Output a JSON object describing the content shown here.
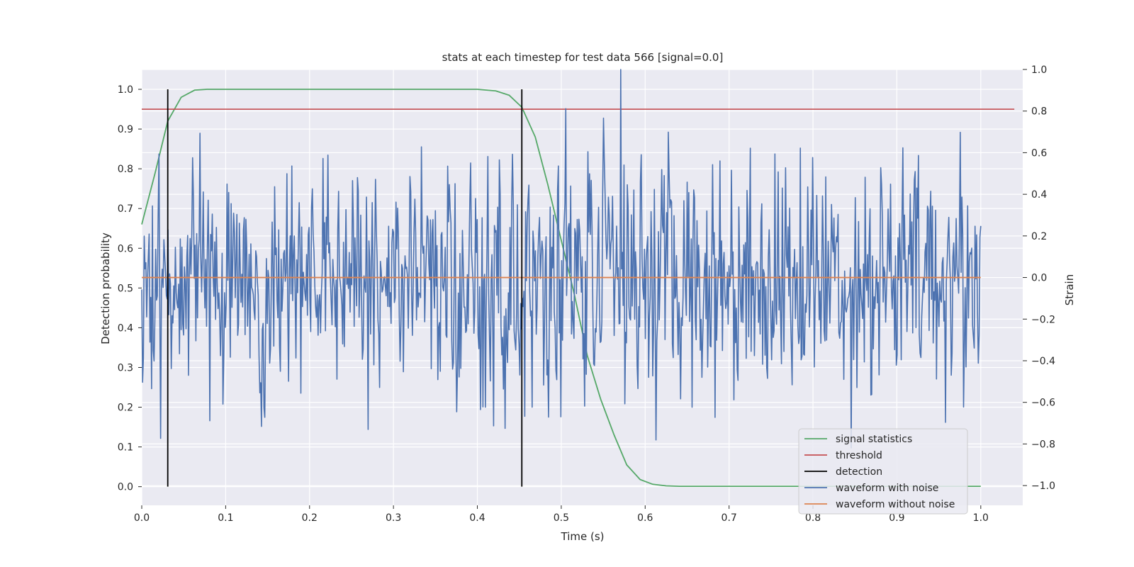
{
  "chart_data": {
    "type": "line",
    "title": "stats at each timestep for test data 566 [signal=0.0]",
    "xlabel": "Time (s)",
    "ylabel": "Detection probability",
    "y2label": "Strain",
    "xlim": [
      0.0,
      1.05
    ],
    "ylim": [
      -0.047,
      1.05
    ],
    "y2lim": [
      -1.095,
      1.0
    ],
    "xticks": [
      "0.0",
      "0.1",
      "0.2",
      "0.3",
      "0.4",
      "0.5",
      "0.6",
      "0.7",
      "0.8",
      "0.9",
      "1.0"
    ],
    "yticks": [
      "0.0",
      "0.1",
      "0.2",
      "0.3",
      "0.4",
      "0.5",
      "0.6",
      "0.7",
      "0.8",
      "0.9",
      "1.0"
    ],
    "y2ticks": [
      "−1.0",
      "−0.8",
      "−0.6",
      "−0.4",
      "−0.2",
      "0.0",
      "0.2",
      "0.4",
      "0.6",
      "0.8",
      "1.0"
    ],
    "grid": true,
    "legend_position": "bottom-right",
    "colors": {
      "plot_bg": "#eaeaf2",
      "grid": "#ffffff",
      "signal": "#55a868",
      "threshold": "#c44e52",
      "detection": "#000000",
      "noisy": "#4c72b0",
      "clean": "#dd8452"
    },
    "series": [
      {
        "name": "signal statistics",
        "axis": "left",
        "x": [
          0.0,
          0.016,
          0.031,
          0.047,
          0.063,
          0.078,
          0.094,
          0.109,
          0.125,
          0.2,
          0.3,
          0.4,
          0.406,
          0.422,
          0.438,
          0.453,
          0.469,
          0.484,
          0.5,
          0.516,
          0.531,
          0.547,
          0.563,
          0.578,
          0.594,
          0.609,
          0.625,
          0.641,
          0.7,
          0.8,
          0.9,
          1.0
        ],
        "values": [
          0.66,
          0.79,
          0.92,
          0.98,
          0.998,
          1.0,
          1.0,
          1.0,
          1.0,
          1.0,
          1.0,
          1.0,
          0.999,
          0.996,
          0.985,
          0.955,
          0.88,
          0.76,
          0.62,
          0.48,
          0.33,
          0.22,
          0.13,
          0.055,
          0.018,
          0.006,
          0.002,
          0.001,
          0.001,
          0.001,
          0.001,
          0.001
        ]
      },
      {
        "name": "threshold",
        "axis": "left",
        "x": [
          0.0,
          1.04
        ],
        "values": [
          0.95,
          0.95
        ]
      },
      {
        "name": "detection",
        "axis": "left",
        "events": [
          0.031,
          0.453
        ],
        "range": [
          0.0,
          1.0
        ]
      },
      {
        "name": "waveform with noise",
        "axis": "right",
        "x_range": [
          0.0,
          1.0
        ],
        "samples": 1024,
        "min": -1.0,
        "max": 1.0
      },
      {
        "name": "waveform without noise",
        "axis": "right",
        "x": [
          0.0,
          1.0
        ],
        "values": [
          0.0,
          0.0
        ]
      }
    ],
    "legend": [
      "signal statistics",
      "threshold",
      "detection",
      "waveform with noise",
      "waveform without noise"
    ]
  }
}
